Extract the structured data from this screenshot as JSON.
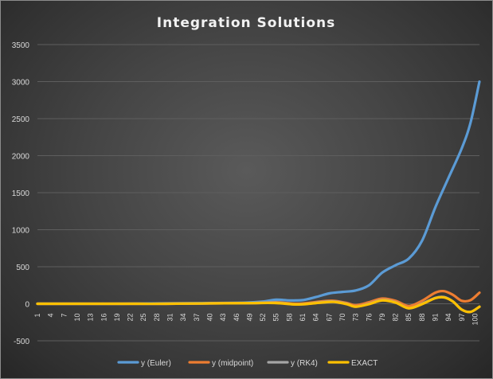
{
  "chart_data": {
    "type": "line",
    "title": "Integration Solutions",
    "xlabel": "",
    "ylabel": "",
    "ylim": [
      -500,
      3500
    ],
    "yticks": [
      -500,
      0,
      500,
      1000,
      1500,
      2000,
      2500,
      3000,
      3500
    ],
    "xlim": [
      1,
      101
    ],
    "xticks": [
      1,
      4,
      7,
      10,
      13,
      16,
      19,
      22,
      25,
      28,
      31,
      34,
      37,
      40,
      43,
      46,
      49,
      52,
      55,
      58,
      61,
      64,
      67,
      70,
      73,
      76,
      79,
      82,
      85,
      88,
      91,
      94,
      97,
      100
    ],
    "grid": true,
    "legend": "bottom",
    "series": [
      {
        "name": "y (Euler)",
        "color": "#5b9bd5",
        "x": [
          1,
          10,
          20,
          30,
          40,
          48,
          52,
          55,
          58,
          61,
          64,
          67,
          70,
          73,
          76,
          79,
          82,
          85,
          88,
          91,
          94,
          97,
          99,
          101
        ],
        "y": [
          0,
          0,
          0,
          5,
          10,
          15,
          30,
          55,
          45,
          50,
          90,
          140,
          160,
          180,
          250,
          420,
          520,
          610,
          850,
          1300,
          1700,
          2100,
          2450,
          3000
        ]
      },
      {
        "name": "y (midpoint)",
        "color": "#ed7d31",
        "x": [
          1,
          10,
          20,
          30,
          40,
          50,
          55,
          60,
          65,
          68,
          71,
          73,
          76,
          79,
          82,
          85,
          88,
          91,
          93,
          95,
          97,
          99,
          101
        ],
        "y": [
          0,
          0,
          0,
          0,
          5,
          10,
          20,
          0,
          30,
          40,
          10,
          -20,
          20,
          70,
          40,
          -30,
          40,
          150,
          170,
          120,
          40,
          50,
          150
        ]
      },
      {
        "name": "y (RK4)",
        "color": "#a5a5a5",
        "x": [
          1,
          10,
          20,
          30,
          40,
          50,
          55,
          60,
          65,
          68,
          71,
          73,
          76,
          79,
          82,
          85,
          88,
          91,
          93,
          95,
          97,
          99,
          101
        ],
        "y": [
          0,
          0,
          0,
          0,
          5,
          10,
          15,
          -10,
          20,
          30,
          0,
          -40,
          0,
          50,
          20,
          -60,
          0,
          80,
          90,
          30,
          -80,
          -110,
          -40
        ]
      },
      {
        "name": "EXACT",
        "color": "#ffc000",
        "x": [
          1,
          10,
          20,
          30,
          40,
          50,
          55,
          60,
          65,
          68,
          71,
          73,
          76,
          79,
          82,
          85,
          88,
          91,
          93,
          95,
          97,
          99,
          101
        ],
        "y": [
          0,
          0,
          0,
          0,
          5,
          10,
          10,
          -10,
          15,
          25,
          -5,
          -40,
          -5,
          45,
          15,
          -60,
          -5,
          75,
          85,
          30,
          -80,
          -110,
          -40
        ]
      }
    ]
  }
}
